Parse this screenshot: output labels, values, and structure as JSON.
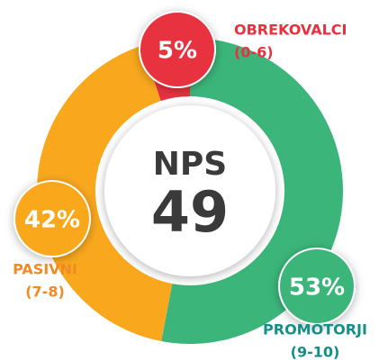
{
  "chart_data": {
    "type": "pie",
    "title": "NPS",
    "center_value": 49,
    "categories": [
      "OBREKOVALCI",
      "PROMOTORJI",
      "PASIVNI"
    ],
    "ranges": [
      "(0-6)",
      "(9-10)",
      "(7-8)"
    ],
    "values": [
      5,
      53,
      42
    ],
    "value_labels": [
      "5%",
      "53%",
      "42%"
    ],
    "colors": [
      "#e8313f",
      "#3bb57a",
      "#f9a81e"
    ],
    "label_colors": [
      "#e8313f",
      "#138f86",
      "#f08a24"
    ]
  }
}
